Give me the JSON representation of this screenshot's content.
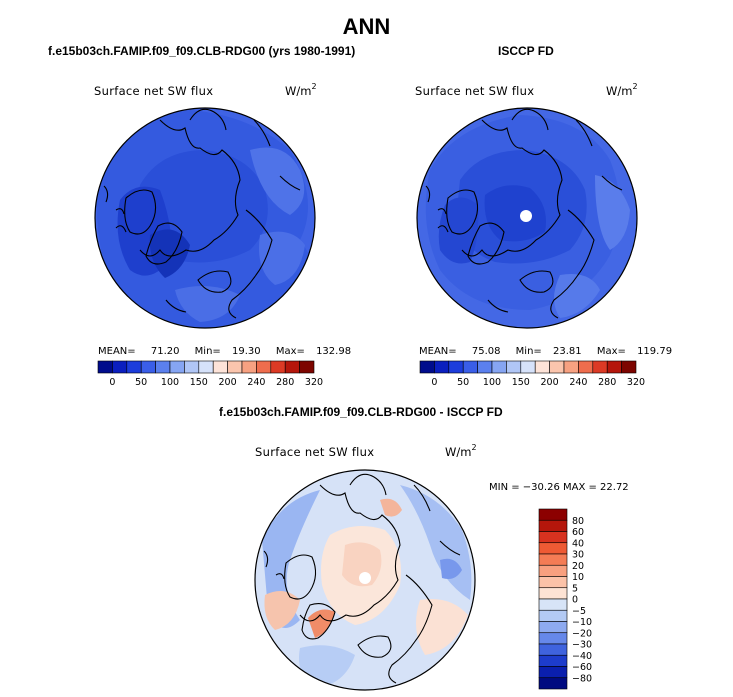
{
  "title": "ANN",
  "panels": [
    {
      "title": "f.e15b03ch.FAMIP.f09_f09.CLB-RDG00 (yrs 1980-1991)",
      "variable": "Surface net SW flux",
      "unit": "W/m",
      "unit_exp": "2",
      "mean_label": "MEAN=",
      "mean": "71.20",
      "min_label": "Min=",
      "min": "19.30",
      "max_label": "Max=",
      "max": "132.98"
    },
    {
      "title": "ISCCP FD",
      "variable": "Surface net SW flux",
      "unit": "W/m",
      "unit_exp": "2",
      "mean_label": "MEAN=",
      "mean": "75.08",
      "min_label": "Min=",
      "min": "23.81",
      "max_label": "Max=",
      "max": "119.79"
    },
    {
      "title": "f.e15b03ch.FAMIP.f09_f09.CLB-RDG00 - ISCCP FD",
      "variable": "Surface net SW flux",
      "unit": "W/m",
      "unit_exp": "2",
      "minmax": "MIN = −30.26  MAX =  22.72"
    }
  ],
  "chart_data": [
    {
      "type": "heatmap",
      "projection": "north-polar-stereographic",
      "title": "f.e15b03ch.FAMIP.f09_f09.CLB-RDG00 (yrs 1980-1991)",
      "field": "Surface net SW flux",
      "units": "W/m^2",
      "mean": 71.2,
      "min": 19.3,
      "max": 132.98,
      "colorbar": {
        "orientation": "horizontal",
        "levels": [
          0,
          25,
          50,
          75,
          100,
          125,
          150,
          175,
          200,
          240,
          260,
          280,
          300,
          320
        ],
        "tick_labels": [
          "0",
          "50",
          "100",
          "150",
          "200",
          "240",
          "280",
          "320"
        ],
        "colors": [
          "#000c8c",
          "#0b1fbf",
          "#1d3ddb",
          "#3a5ee8",
          "#5b80ee",
          "#86a5f2",
          "#b0c6f6",
          "#d6e2fa",
          "#fde3d8",
          "#fbc5ad",
          "#f7a181",
          "#ef6d4d",
          "#dc3a25",
          "#b5160b",
          "#7d0500"
        ]
      }
    },
    {
      "type": "heatmap",
      "projection": "north-polar-stereographic",
      "title": "ISCCP FD",
      "field": "Surface net SW flux",
      "units": "W/m^2",
      "mean": 75.08,
      "min": 23.81,
      "max": 119.79,
      "colorbar": {
        "orientation": "horizontal",
        "levels": [
          0,
          25,
          50,
          75,
          100,
          125,
          150,
          175,
          200,
          240,
          260,
          280,
          300,
          320
        ],
        "tick_labels": [
          "0",
          "50",
          "100",
          "150",
          "200",
          "240",
          "280",
          "320"
        ],
        "colors": [
          "#000c8c",
          "#0b1fbf",
          "#1d3ddb",
          "#3a5ee8",
          "#5b80ee",
          "#86a5f2",
          "#b0c6f6",
          "#d6e2fa",
          "#fde3d8",
          "#fbc5ad",
          "#f7a181",
          "#ef6d4d",
          "#dc3a25",
          "#b5160b",
          "#7d0500"
        ]
      }
    },
    {
      "type": "heatmap",
      "projection": "north-polar-stereographic",
      "title": "f.e15b03ch.FAMIP.f09_f09.CLB-RDG00 - ISCCP FD",
      "field": "Surface net SW flux",
      "units": "W/m^2",
      "min": -30.26,
      "max": 22.72,
      "colorbar": {
        "orientation": "vertical",
        "tick_labels": [
          "80",
          "60",
          "40",
          "30",
          "20",
          "10",
          "5",
          "0",
          "−5",
          "−10",
          "−20",
          "−30",
          "−40",
          "−60",
          "−80"
        ],
        "colors": [
          "#8c0000",
          "#b5160b",
          "#d8321f",
          "#ee5a34",
          "#f47c55",
          "#f8a07f",
          "#fbc2a8",
          "#fde3d4",
          "#d7e4f7",
          "#b3caf4",
          "#8eaaf0",
          "#6688ea",
          "#3f63de",
          "#1d3ccc",
          "#0a1fae",
          "#000a80"
        ]
      }
    }
  ],
  "colors": {
    "accent_blue": "#2f58de",
    "accent_red": "#cc2a1a"
  }
}
